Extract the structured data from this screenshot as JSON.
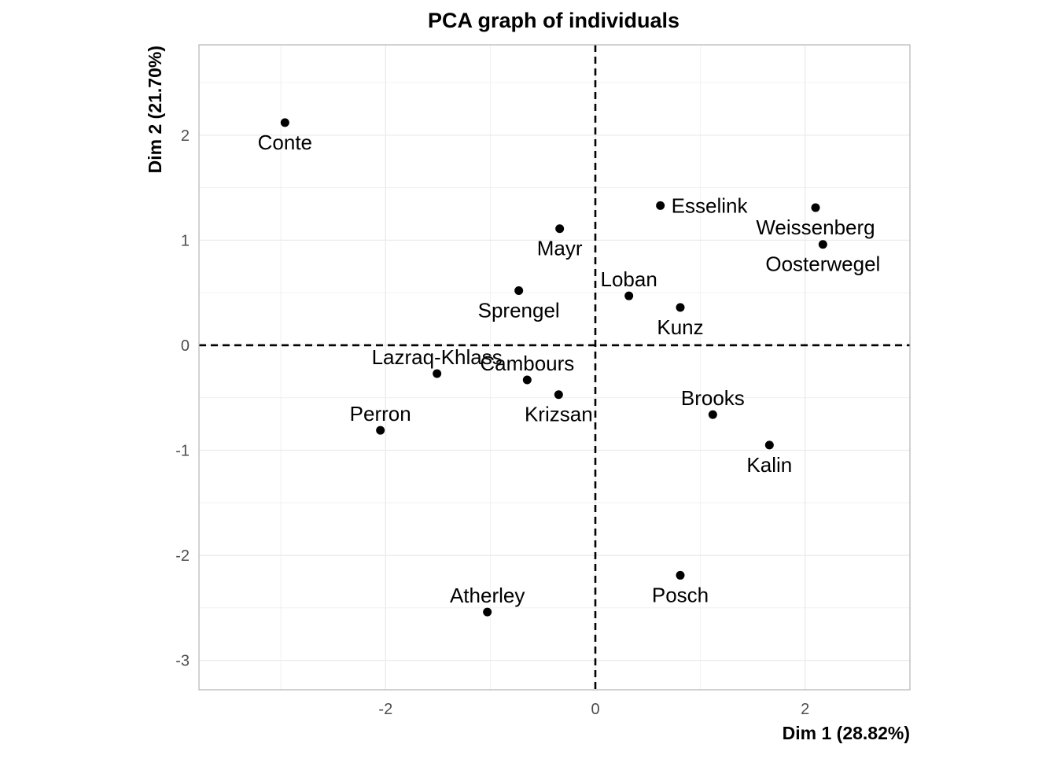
{
  "chart_data": {
    "type": "scatter",
    "title": "PCA graph of individuals",
    "xlabel": "Dim 1 (28.82%)",
    "ylabel": "Dim 2 (21.70%)",
    "xlim": [
      -3.78,
      3.0
    ],
    "ylim": [
      -3.28,
      2.86
    ],
    "xticks": [
      -2,
      0,
      2
    ],
    "yticks": [
      -3,
      -2,
      -1,
      0,
      1,
      2
    ],
    "grid": true,
    "reference_lines": {
      "x": 0,
      "y": 0,
      "style": "dashed"
    },
    "point_color": "#000000",
    "points": [
      {
        "label": "Conte",
        "x": -2.96,
        "y": 2.12,
        "label_pos": "below"
      },
      {
        "label": "Esselink",
        "x": 0.62,
        "y": 1.33,
        "label_pos": "right"
      },
      {
        "label": "Mayr",
        "x": -0.34,
        "y": 1.11,
        "label_pos": "below"
      },
      {
        "label": "Weissenberg",
        "x": 2.1,
        "y": 1.31,
        "label_pos": "below"
      },
      {
        "label": "Oosterwegel",
        "x": 2.17,
        "y": 0.96,
        "label_pos": "below"
      },
      {
        "label": "Loban",
        "x": 0.32,
        "y": 0.47,
        "label_pos": "above"
      },
      {
        "label": "Sprengel",
        "x": -0.73,
        "y": 0.52,
        "label_pos": "below"
      },
      {
        "label": "Kunz",
        "x": 0.81,
        "y": 0.36,
        "label_pos": "below"
      },
      {
        "label": "Lazraq-Khlass",
        "x": -1.51,
        "y": -0.27,
        "label_pos": "above"
      },
      {
        "label": "Cambours",
        "x": -0.65,
        "y": -0.33,
        "label_pos": "above"
      },
      {
        "label": "Krizsan",
        "x": -0.35,
        "y": -0.47,
        "label_pos": "below"
      },
      {
        "label": "Brooks",
        "x": 1.12,
        "y": -0.66,
        "label_pos": "above"
      },
      {
        "label": "Perron",
        "x": -2.05,
        "y": -0.81,
        "label_pos": "above"
      },
      {
        "label": "Kalin",
        "x": 1.66,
        "y": -0.95,
        "label_pos": "below"
      },
      {
        "label": "Posch",
        "x": 0.81,
        "y": -2.19,
        "label_pos": "below"
      },
      {
        "label": "Atherley",
        "x": -1.03,
        "y": -2.54,
        "label_pos": "above"
      }
    ]
  }
}
